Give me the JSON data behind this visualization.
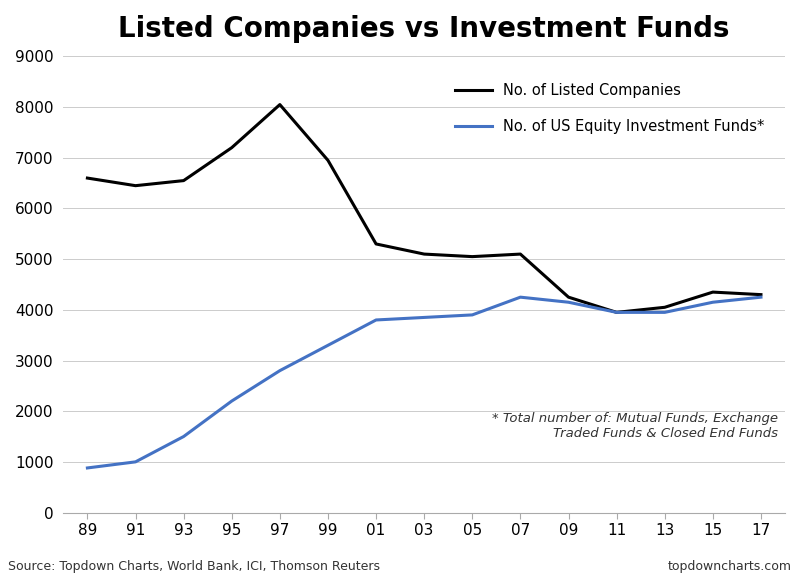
{
  "title": "Listed Companies vs Investment Funds",
  "title_fontsize": 20,
  "title_fontweight": "bold",
  "years": [
    1989,
    1991,
    1993,
    1995,
    1997,
    1999,
    2001,
    2003,
    2005,
    2007,
    2009,
    2011,
    2013,
    2015,
    2017
  ],
  "listed_companies": [
    6600,
    6450,
    6550,
    7200,
    8050,
    6950,
    5300,
    5100,
    5050,
    5100,
    4250,
    3950,
    4050,
    4350,
    4300
  ],
  "investment_funds": [
    880,
    1000,
    1500,
    2200,
    2800,
    3300,
    3800,
    3850,
    3900,
    4250,
    4150,
    3950,
    3950,
    4150,
    4250
  ],
  "listed_color": "#000000",
  "funds_color": "#4472c4",
  "listed_label": "No. of Listed Companies",
  "funds_label": "No. of US Equity Investment Funds*",
  "ylim": [
    0,
    9000
  ],
  "yticks": [
    0,
    1000,
    2000,
    3000,
    4000,
    5000,
    6000,
    7000,
    8000,
    9000
  ],
  "xtick_labels": [
    "89",
    "91",
    "93",
    "95",
    "97",
    "99",
    "01",
    "03",
    "05",
    "07",
    "09",
    "11",
    "13",
    "15",
    "17"
  ],
  "source_text": "Source: Topdown Charts, World Bank, ICI, Thomson Reuters",
  "website_text": "topdowncharts.com",
  "footnote_line1": "* Total number of: Mutual Funds, Exchange",
  "footnote_line2": "Traded Funds & Closed End Funds",
  "line_width": 2.2,
  "bg_color": "#ffffff",
  "grid_color": "#cccccc"
}
